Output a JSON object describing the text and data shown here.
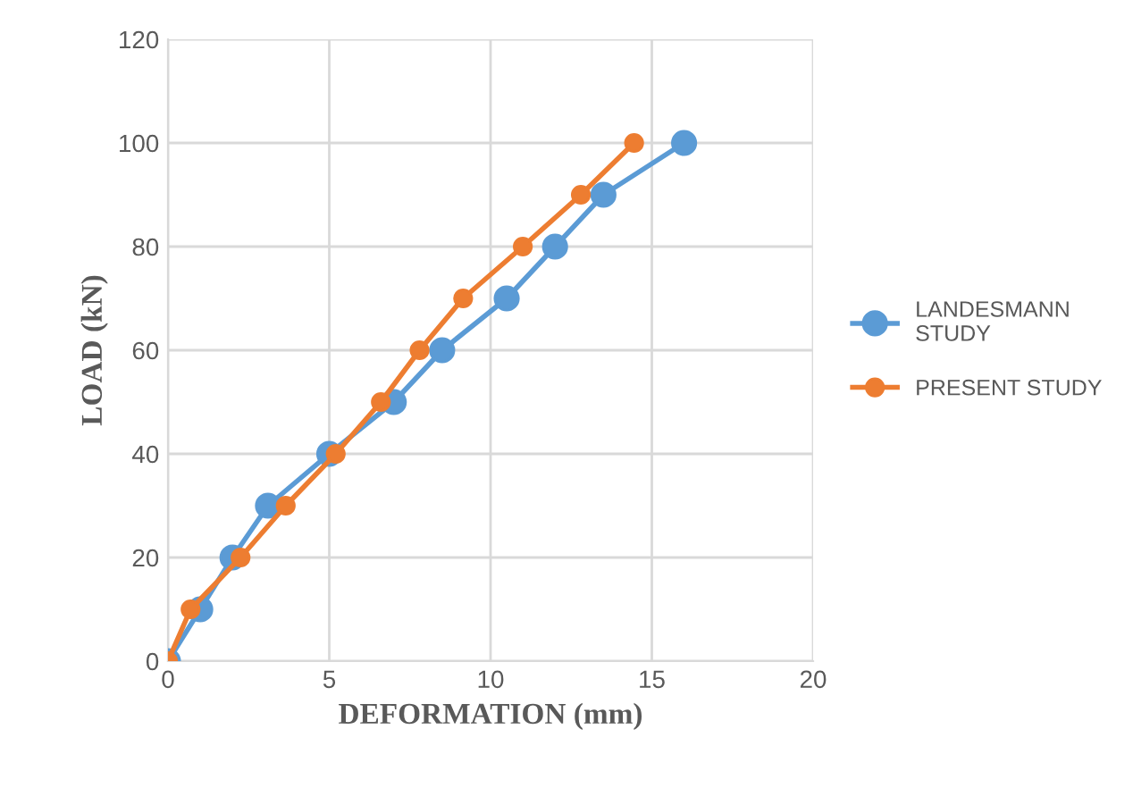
{
  "chart_data": {
    "type": "line",
    "xlabel": "DEFORMATION (mm)",
    "ylabel": "LOAD (kN)",
    "xlim": [
      0,
      20
    ],
    "xticks": [
      0,
      5,
      10,
      15,
      20
    ],
    "ylim": [
      0,
      120
    ],
    "yticks": [
      0,
      20,
      40,
      60,
      80,
      100,
      120
    ],
    "grid": true,
    "legend": "right",
    "marker": "circle",
    "series": [
      {
        "name": "LANDESMANN STUDY",
        "color": "#5b9bd5",
        "x": [
          0,
          1.0,
          2.0,
          3.1,
          5.0,
          7.0,
          8.5,
          10.5,
          12.0,
          13.5,
          16.0
        ],
        "values": [
          0,
          10,
          20,
          30,
          40,
          50,
          60,
          70,
          80,
          90,
          100
        ]
      },
      {
        "name": "PRESENT STUDY",
        "color": "#ed7d31",
        "x": [
          0,
          0.7,
          2.25,
          3.65,
          5.2,
          6.6,
          7.8,
          9.15,
          11.0,
          12.8,
          14.45
        ],
        "values": [
          0,
          10,
          20,
          30,
          40,
          50,
          60,
          70,
          80,
          90,
          100
        ]
      }
    ]
  }
}
